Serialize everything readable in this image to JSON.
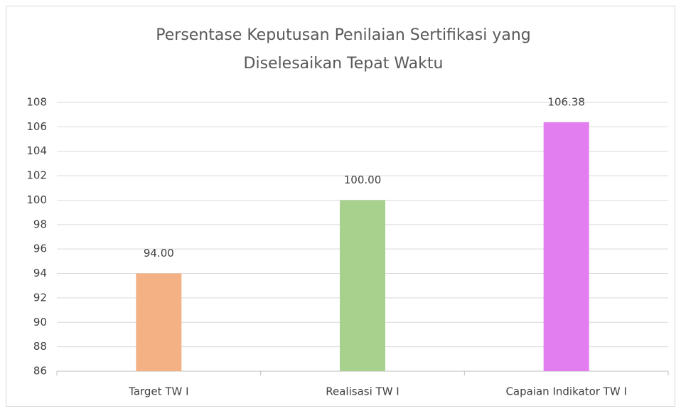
{
  "chart_data": {
    "type": "bar",
    "title": [
      "Persentase Keputusan Penilaian Sertifikasi yang",
      "Diselesaikan Tepat Waktu"
    ],
    "categories": [
      "Target TW I",
      "Realisasi TW I",
      "Capaian Indikator TW I"
    ],
    "values": [
      94,
      100,
      106.38
    ],
    "value_labels": [
      "94.00",
      "100.00",
      "106.38"
    ],
    "colors": [
      "#f4b183",
      "#a9d18e",
      "#e37ef0"
    ],
    "ylim": [
      86,
      108
    ],
    "yticks": [
      86,
      88,
      90,
      92,
      94,
      96,
      98,
      100,
      102,
      104,
      106,
      108
    ],
    "grid": true
  }
}
